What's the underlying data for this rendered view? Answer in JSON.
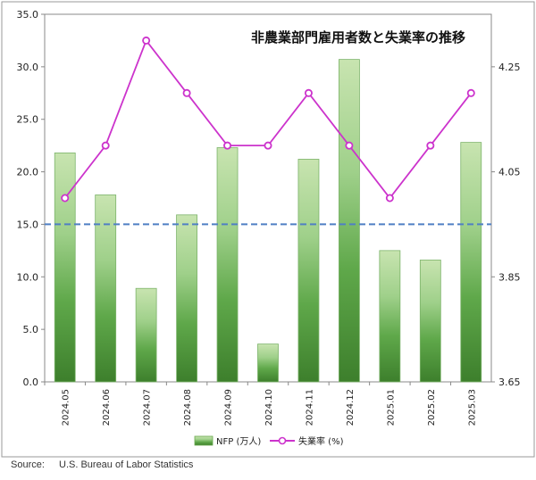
{
  "source_label": "Source:",
  "source_text": "U.S. Bureau of Labor Statistics",
  "chart_data": {
    "type": "bar",
    "title": "非農業部門雇用者数と失業率の推移",
    "categories": [
      "2024.05",
      "2024.06",
      "2024.07",
      "2024.08",
      "2024.09",
      "2024.10",
      "2024.11",
      "2024.12",
      "2025.01",
      "2025.02",
      "2025.03"
    ],
    "series": [
      {
        "name": "NFP (万人)",
        "type": "bar",
        "axis": "left",
        "color": "#4f9a3a",
        "values": [
          21.8,
          17.8,
          8.9,
          15.9,
          22.3,
          3.6,
          21.2,
          30.7,
          12.5,
          11.6,
          22.8
        ]
      },
      {
        "name": "失業率 (%)",
        "type": "line",
        "axis": "right",
        "color": "#cc33cc",
        "values": [
          4.0,
          4.1,
          4.3,
          4.2,
          4.1,
          4.1,
          4.2,
          4.1,
          4.0,
          4.1,
          4.2
        ]
      }
    ],
    "y_left": {
      "ylim": [
        0,
        35
      ],
      "ticks": [
        "0.0",
        "5.0",
        "10.0",
        "15.0",
        "20.0",
        "25.0",
        "30.0",
        "35.0"
      ]
    },
    "y_right": {
      "ylim": [
        3.65,
        4.35
      ],
      "ticks": [
        "3.65",
        "3.85",
        "4.05",
        "4.25"
      ]
    },
    "reference_line": {
      "value": 15,
      "axis": "left",
      "color": "#4f7fc4",
      "style": "dashed"
    },
    "legend": {
      "position": "bottom"
    },
    "grid": false
  }
}
